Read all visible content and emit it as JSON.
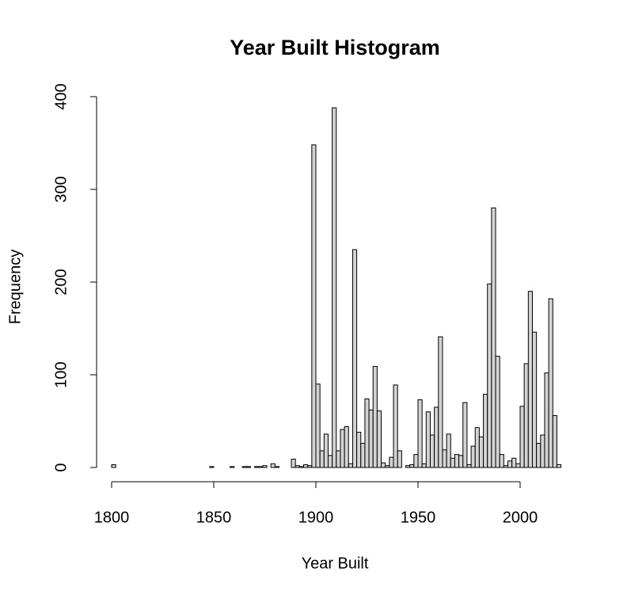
{
  "chart_data": {
    "type": "histogram",
    "title": "Year Built Histogram",
    "x_label": "Year Built",
    "y_label": "Frequency",
    "bins": [
      1800,
      1802,
      1804,
      1806,
      1808,
      1810,
      1812,
      1814,
      1816,
      1818,
      1820,
      1822,
      1824,
      1826,
      1828,
      1830,
      1832,
      1834,
      1836,
      1838,
      1840,
      1842,
      1844,
      1846,
      1848,
      1850,
      1852,
      1854,
      1856,
      1858,
      1860,
      1862,
      1864,
      1866,
      1868,
      1870,
      1872,
      1874,
      1876,
      1878,
      1880,
      1882,
      1884,
      1886,
      1888,
      1890,
      1892,
      1894,
      1896,
      1898,
      1900,
      1902,
      1904,
      1906,
      1908,
      1910,
      1912,
      1914,
      1916,
      1918,
      1920,
      1922,
      1924,
      1926,
      1928,
      1930,
      1932,
      1934,
      1936,
      1938,
      1940,
      1942,
      1944,
      1946,
      1948,
      1950,
      1952,
      1954,
      1956,
      1958,
      1960,
      1962,
      1964,
      1966,
      1968,
      1970,
      1972,
      1974,
      1976,
      1978,
      1980,
      1982,
      1984,
      1986,
      1988,
      1990,
      1992,
      1994,
      1996,
      1998,
      2000,
      2002,
      2004,
      2006,
      2008,
      2010,
      2012,
      2014,
      2016,
      2018,
      2020
    ],
    "counts": [
      3,
      0,
      0,
      0,
      0,
      0,
      0,
      0,
      0,
      0,
      0,
      0,
      0,
      0,
      0,
      0,
      0,
      0,
      0,
      0,
      0,
      0,
      0,
      0,
      1,
      0,
      0,
      0,
      0,
      1,
      0,
      0,
      1,
      1,
      0,
      1,
      1,
      2,
      0,
      4,
      1,
      0,
      0,
      0,
      9,
      2,
      1,
      3,
      2,
      348,
      90,
      18,
      36,
      13,
      388,
      18,
      41,
      44,
      4,
      235,
      38,
      26,
      74,
      62,
      109,
      61,
      5,
      2,
      11,
      89,
      18,
      0,
      2,
      3,
      14,
      73,
      4,
      60,
      35,
      65,
      141,
      19,
      36,
      10,
      14,
      13,
      70,
      3,
      23,
      43,
      33,
      79,
      198,
      280,
      120,
      14,
      2,
      7,
      10,
      4,
      66,
      112,
      190,
      146,
      26,
      35,
      102,
      182,
      56,
      3
    ],
    "color": "#d3d3d3",
    "xlim": [
      1800,
      2000
    ],
    "xticks": [
      1800,
      1850,
      1900,
      1950,
      2000
    ],
    "ylim": [
      0,
      400
    ],
    "yticks": [
      0,
      100,
      200,
      300,
      400
    ]
  }
}
